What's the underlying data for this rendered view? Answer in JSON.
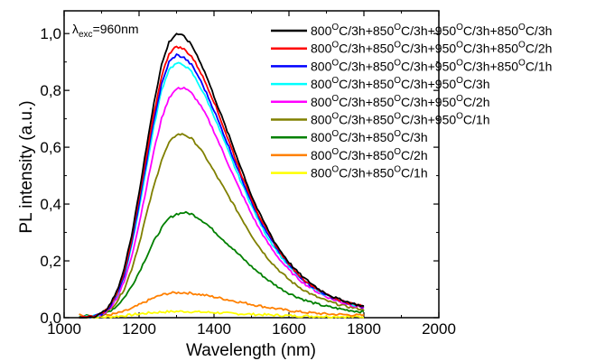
{
  "chart_data": {
    "type": "line",
    "xlabel": "Wavelength (nm)",
    "ylabel": "PL intensity (a.u.)",
    "xlim": [
      1000,
      2000
    ],
    "ylim": [
      0.0,
      1.08
    ],
    "x_ticks": [
      "1000",
      "1200",
      "1400",
      "1600",
      "1800",
      "2000"
    ],
    "y_ticks": [
      "0,0",
      "0,2",
      "0,4",
      "0,6",
      "0,8",
      "1,0"
    ],
    "annotation": "λexc=960nm",
    "legend_position": "top-right",
    "grid": false,
    "x": [
      1040,
      1080,
      1100,
      1120,
      1140,
      1160,
      1180,
      1200,
      1220,
      1240,
      1260,
      1280,
      1300,
      1320,
      1340,
      1360,
      1380,
      1400,
      1420,
      1440,
      1460,
      1480,
      1500,
      1520,
      1540,
      1560,
      1580,
      1600,
      1620,
      1640,
      1660,
      1680,
      1700,
      1720,
      1740,
      1760,
      1780,
      1800
    ],
    "series": [
      {
        "name": "800°C/3h+850°C/3h+950°C/3h+850°C/3h",
        "color": "#000000",
        "values": [
          0.0,
          0.005,
          0.015,
          0.04,
          0.09,
          0.17,
          0.29,
          0.44,
          0.6,
          0.76,
          0.89,
          0.97,
          1.0,
          0.99,
          0.96,
          0.91,
          0.85,
          0.78,
          0.71,
          0.64,
          0.57,
          0.5,
          0.43,
          0.37,
          0.32,
          0.27,
          0.23,
          0.195,
          0.165,
          0.14,
          0.12,
          0.1,
          0.085,
          0.072,
          0.062,
          0.054,
          0.046,
          0.04
        ]
      },
      {
        "name": "800°C/3h+850°C/3h+950°C/3h+850°C/2h",
        "color": "#ff0000",
        "values": [
          0.0,
          0.005,
          0.014,
          0.038,
          0.085,
          0.16,
          0.275,
          0.42,
          0.57,
          0.72,
          0.85,
          0.93,
          0.955,
          0.945,
          0.92,
          0.875,
          0.82,
          0.76,
          0.69,
          0.62,
          0.55,
          0.48,
          0.42,
          0.36,
          0.31,
          0.265,
          0.225,
          0.19,
          0.16,
          0.135,
          0.115,
          0.098,
          0.083,
          0.07,
          0.06,
          0.052,
          0.045,
          0.039
        ]
      },
      {
        "name": "800°C/3h+850°C/3h+950°C/3h+850°C/1h",
        "color": "#0000ff",
        "values": [
          0.0,
          0.005,
          0.013,
          0.036,
          0.08,
          0.15,
          0.26,
          0.4,
          0.55,
          0.7,
          0.82,
          0.9,
          0.925,
          0.915,
          0.89,
          0.845,
          0.79,
          0.73,
          0.665,
          0.6,
          0.535,
          0.47,
          0.41,
          0.35,
          0.3,
          0.258,
          0.22,
          0.186,
          0.157,
          0.132,
          0.112,
          0.095,
          0.081,
          0.069,
          0.059,
          0.051,
          0.044,
          0.038
        ]
      },
      {
        "name": "800°C/3h+850°C/3h+950°C/3h",
        "color": "#00ffff",
        "values": [
          0.0,
          0.005,
          0.013,
          0.035,
          0.078,
          0.145,
          0.25,
          0.385,
          0.53,
          0.675,
          0.8,
          0.875,
          0.895,
          0.89,
          0.865,
          0.82,
          0.77,
          0.71,
          0.645,
          0.58,
          0.515,
          0.455,
          0.395,
          0.34,
          0.29,
          0.25,
          0.213,
          0.18,
          0.153,
          0.13,
          0.11,
          0.093,
          0.079,
          0.067,
          0.058,
          0.05,
          0.043,
          0.037
        ]
      },
      {
        "name": "800°C/3h+850°C/3h+950°C/2h",
        "color": "#ff00ff",
        "values": [
          0.0,
          0.004,
          0.011,
          0.03,
          0.068,
          0.125,
          0.215,
          0.33,
          0.46,
          0.59,
          0.7,
          0.775,
          0.805,
          0.81,
          0.79,
          0.755,
          0.71,
          0.655,
          0.595,
          0.535,
          0.475,
          0.42,
          0.365,
          0.315,
          0.27,
          0.232,
          0.198,
          0.168,
          0.143,
          0.121,
          0.103,
          0.087,
          0.074,
          0.063,
          0.054,
          0.047,
          0.04,
          0.035
        ]
      },
      {
        "name": "800°C/3h+850°C/3h+950°C/1h",
        "color": "#808000",
        "values": [
          0.0,
          0.003,
          0.009,
          0.025,
          0.055,
          0.1,
          0.17,
          0.26,
          0.365,
          0.465,
          0.555,
          0.615,
          0.645,
          0.645,
          0.63,
          0.6,
          0.56,
          0.515,
          0.47,
          0.425,
          0.38,
          0.335,
          0.29,
          0.25,
          0.215,
          0.185,
          0.158,
          0.134,
          0.114,
          0.097,
          0.082,
          0.07,
          0.06,
          0.051,
          0.044,
          0.038,
          0.033,
          0.028
        ]
      },
      {
        "name": "800°C/3h+850°C/3h",
        "color": "#008000",
        "values": [
          0.005,
          0.008,
          0.012,
          0.022,
          0.04,
          0.07,
          0.11,
          0.16,
          0.215,
          0.27,
          0.315,
          0.35,
          0.365,
          0.37,
          0.365,
          0.35,
          0.33,
          0.305,
          0.28,
          0.255,
          0.23,
          0.205,
          0.18,
          0.158,
          0.137,
          0.118,
          0.101,
          0.086,
          0.074,
          0.063,
          0.054,
          0.046,
          0.04,
          0.035,
          0.03,
          0.026,
          0.023,
          0.02
        ]
      },
      {
        "name": "800°C/3h+850°C/2h",
        "color": "#ff8000",
        "values": [
          0.01,
          0.008,
          0.008,
          0.01,
          0.015,
          0.022,
          0.032,
          0.045,
          0.058,
          0.07,
          0.08,
          0.086,
          0.088,
          0.088,
          0.086,
          0.082,
          0.078,
          0.073,
          0.068,
          0.062,
          0.057,
          0.052,
          0.047,
          0.042,
          0.037,
          0.033,
          0.029,
          0.025,
          0.022,
          0.019,
          0.017,
          0.015,
          0.013,
          0.012,
          0.011,
          0.01,
          0.009,
          0.008
        ]
      },
      {
        "name": "800°C/3h+850°C/1h",
        "color": "#ffff00",
        "values": [
          0.0,
          0.001,
          0.002,
          0.003,
          0.005,
          0.007,
          0.01,
          0.013,
          0.016,
          0.018,
          0.02,
          0.021,
          0.022,
          0.022,
          0.021,
          0.02,
          0.019,
          0.018,
          0.017,
          0.015,
          0.014,
          0.013,
          0.012,
          0.011,
          0.01,
          0.009,
          0.008,
          0.007,
          0.006,
          0.006,
          0.005,
          0.005,
          0.004,
          0.004,
          0.004,
          0.003,
          0.003,
          0.003
        ]
      }
    ]
  }
}
